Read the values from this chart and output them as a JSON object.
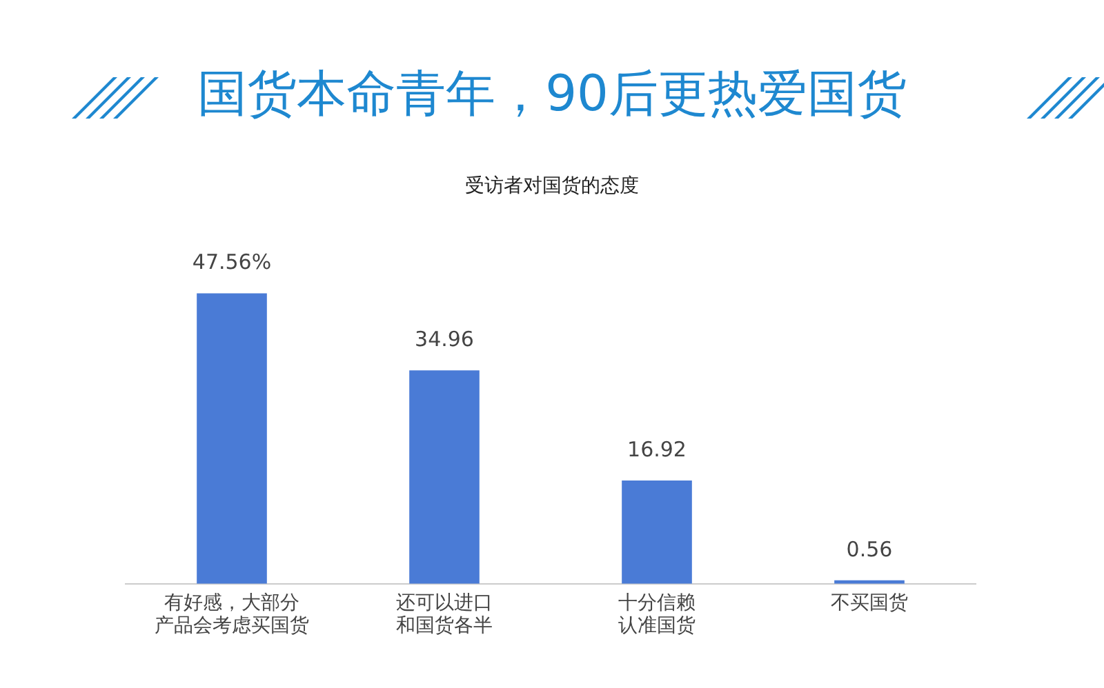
{
  "chart_data": {
    "type": "bar",
    "title": "国货本命青年，90后更热爱国货",
    "subtitle": "受访者对国货的态度",
    "categories": [
      "有好感，大部分产品会考虑买国货",
      "还可以进口和国货各半",
      "十分信赖认准国货",
      "不买国货"
    ],
    "values": [
      47.56,
      34.96,
      16.92,
      0.56
    ],
    "value_labels": [
      "47.56%",
      "34.96",
      "16.92",
      "0.56"
    ],
    "color": "#4a7bd6",
    "tick_labels": "x",
    "grid": false,
    "legend": false
  }
}
